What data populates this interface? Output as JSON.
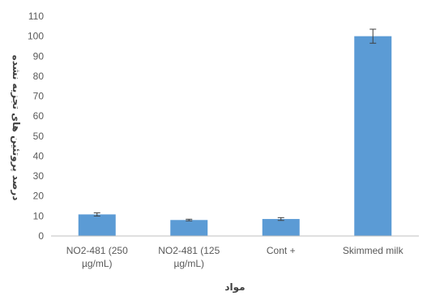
{
  "chart_data": {
    "type": "bar",
    "categories": [
      [
        "NO2-481 (250",
        "µg/mL)"
      ],
      [
        "NO2-481 (125",
        "µg/mL)"
      ],
      [
        "Cont +"
      ],
      [
        "Skimmed milk"
      ]
    ],
    "series": [
      {
        "values": [
          10.8,
          8.0,
          8.5,
          100
        ],
        "errors": [
          0.8,
          0.4,
          0.7,
          3.5
        ]
      }
    ],
    "ylim": [
      0,
      110
    ],
    "yticks": [
      0,
      10,
      20,
      30,
      40,
      50,
      60,
      70,
      80,
      90,
      100,
      110
    ],
    "xlabel": "مواد",
    "ylabel": "درصد پروتئین های تجزیه نشده",
    "bar_color": "#5B9BD5",
    "error_color": "#404040",
    "axis_color": "#BFBFBF",
    "grid": false
  }
}
